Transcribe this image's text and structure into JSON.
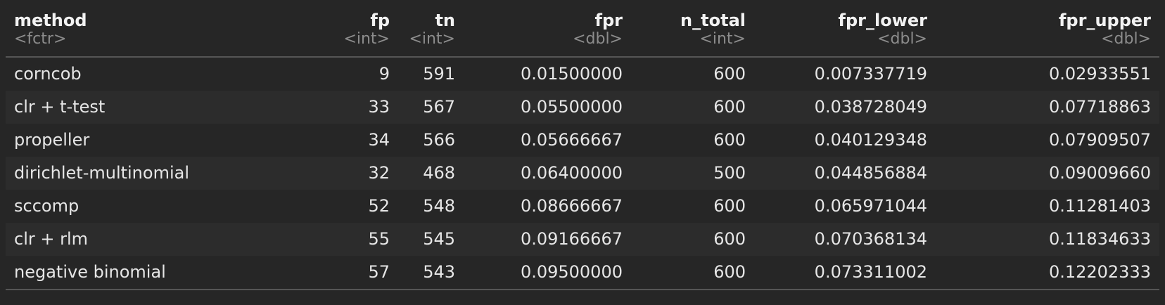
{
  "table": {
    "columns": [
      {
        "name": "method",
        "type": "<fctr>",
        "align": "left"
      },
      {
        "name": "fp",
        "type": "<int>",
        "align": "right"
      },
      {
        "name": "tn",
        "type": "<int>",
        "align": "right"
      },
      {
        "name": "fpr",
        "type": "<dbl>",
        "align": "right"
      },
      {
        "name": "n_total",
        "type": "<int>",
        "align": "right"
      },
      {
        "name": "fpr_lower",
        "type": "<dbl>",
        "align": "right"
      },
      {
        "name": "fpr_upper",
        "type": "<dbl>",
        "align": "right"
      }
    ],
    "rows": [
      [
        "corncob",
        "9",
        "591",
        "0.01500000",
        "600",
        "0.007337719",
        "0.02933551"
      ],
      [
        "clr + t-test",
        "33",
        "567",
        "0.05500000",
        "600",
        "0.038728049",
        "0.07718863"
      ],
      [
        "propeller",
        "34",
        "566",
        "0.05666667",
        "600",
        "0.040129348",
        "0.07909507"
      ],
      [
        "dirichlet-multinomial",
        "32",
        "468",
        "0.06400000",
        "500",
        "0.044856884",
        "0.09009660"
      ],
      [
        "sccomp",
        "52",
        "548",
        "0.08666667",
        "600",
        "0.065971044",
        "0.11281403"
      ],
      [
        "clr + rlm",
        "55",
        "545",
        "0.09166667",
        "600",
        "0.070368134",
        "0.11834633"
      ],
      [
        "negative binomial",
        "57",
        "543",
        "0.09500000",
        "600",
        "0.073311002",
        "0.12202333"
      ]
    ]
  }
}
